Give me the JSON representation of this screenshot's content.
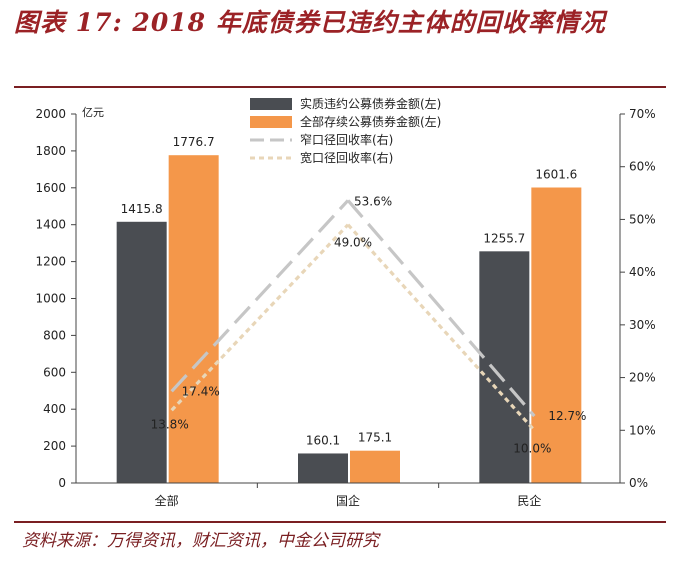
{
  "page": {
    "title": "图表 17: 2018 年底债券已违约主体的回收率情况",
    "source": "资料来源：万得资讯，财汇资讯，中金公司研究"
  },
  "colors": {
    "title": "#9b2226",
    "dark_bar": "#4a4d52",
    "orange_bar": "#f4974a",
    "narrow_line": "#c6c6c6",
    "broad_line": "#e8d6b8"
  },
  "chart_data": {
    "type": "bar",
    "categories": [
      "全部",
      "国企",
      "民企"
    ],
    "left_axis": {
      "unit_label": "亿元",
      "ylim": [
        0,
        2000
      ],
      "ticks": [
        "0",
        "200",
        "400",
        "600",
        "800",
        "1000",
        "1200",
        "1400",
        "1600",
        "1800",
        "2000"
      ]
    },
    "right_axis": {
      "ylim": [
        0,
        70
      ],
      "ticks": [
        "0%",
        "10%",
        "20%",
        "30%",
        "40%",
        "50%",
        "60%",
        "70%"
      ]
    },
    "series": [
      {
        "name": "实质违约公募债券金额(左)",
        "kind": "bar",
        "axis": "left",
        "color_key": "dark_bar",
        "values": [
          1415.8,
          160.1,
          1255.7
        ],
        "labels": [
          "1415.8",
          "160.1",
          "1255.7"
        ]
      },
      {
        "name": "全部存续公募债券金额(左)",
        "kind": "bar",
        "axis": "left",
        "color_key": "orange_bar",
        "values": [
          1776.7,
          175.1,
          1601.6
        ],
        "labels": [
          "1776.7",
          "175.1",
          "1601.6"
        ]
      },
      {
        "name": "窄口径回收率(右)",
        "kind": "line",
        "axis": "right",
        "color_key": "narrow_line",
        "values": [
          17.4,
          53.6,
          12.7
        ],
        "labels": [
          "17.4%",
          "53.6%",
          "12.7%"
        ]
      },
      {
        "name": "宽口径回收率(右)",
        "kind": "line",
        "axis": "right",
        "color_key": "broad_line",
        "values": [
          13.8,
          49.0,
          10.0
        ],
        "labels": [
          "13.8%",
          "49.0%",
          "10.0%"
        ]
      }
    ]
  }
}
